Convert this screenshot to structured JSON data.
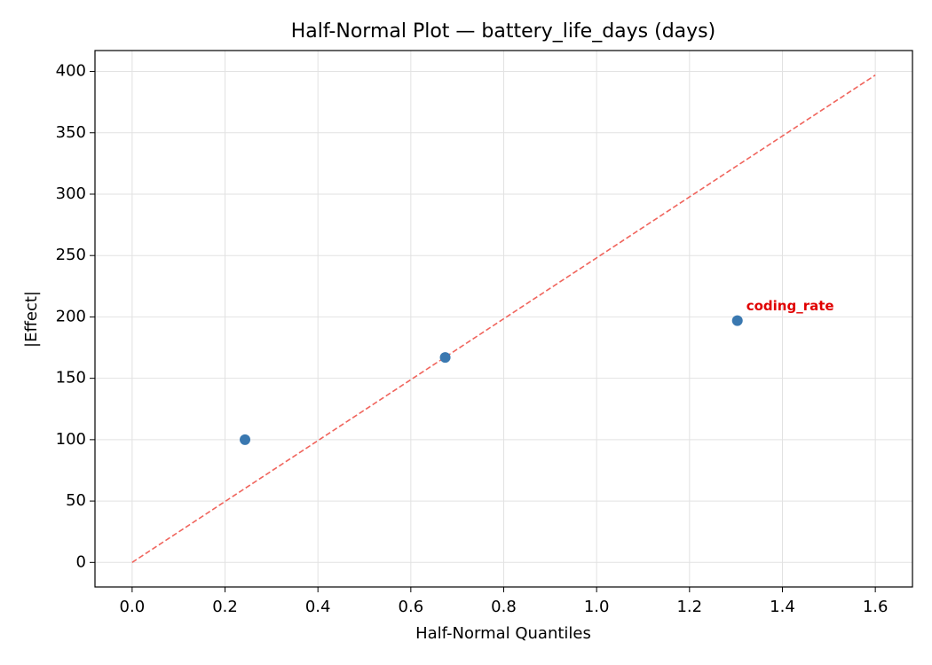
{
  "chart_data": {
    "type": "scatter",
    "title": "Half-Normal Plot — battery_life_days (days)",
    "x_label": "Half-Normal Quantiles",
    "y_label": "|Effect|",
    "x": [
      0.243,
      0.674,
      1.303
    ],
    "values": [
      100,
      167,
      197
    ],
    "labels": [
      null,
      null,
      "coding_rate"
    ],
    "color": "#3a78b0",
    "label_color": "#e00000",
    "reference_line": {
      "x": [
        0,
        1.6
      ],
      "y": [
        0,
        397
      ],
      "color": "#f0645c"
    },
    "xlim": [
      -0.08,
      1.68
    ],
    "ylim": [
      -20,
      417
    ],
    "xticks": [
      {
        "value": 0,
        "label": "0.0"
      },
      {
        "value": 0.2,
        "label": "0.2"
      },
      {
        "value": 0.4,
        "label": "0.4"
      },
      {
        "value": 0.6,
        "label": "0.6"
      },
      {
        "value": 0.8,
        "label": "0.8"
      },
      {
        "value": 1,
        "label": "1.0"
      },
      {
        "value": 1.2,
        "label": "1.2"
      },
      {
        "value": 1.4,
        "label": "1.4"
      },
      {
        "value": 1.6,
        "label": "1.6"
      }
    ],
    "yticks": [
      0,
      50,
      100,
      150,
      200,
      250,
      300,
      350,
      400
    ],
    "grid": true
  }
}
